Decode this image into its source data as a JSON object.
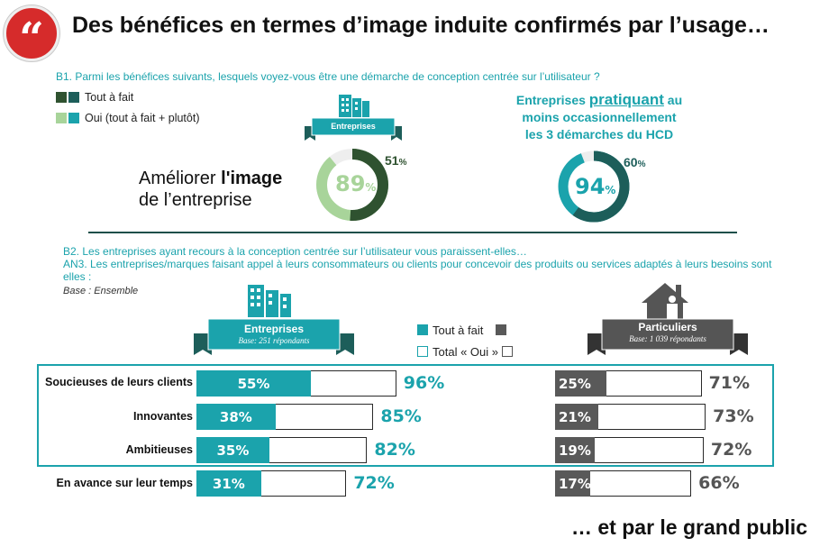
{
  "header": {
    "quote_mark": "“",
    "title": "Des bénéfices en termes d’image induite confirmés par l’usage…"
  },
  "b1": {
    "question": "B1. Parmi les bénéfices suivants, lesquels voyez-vous être une démarche de conception centrée sur l’utilisateur ?",
    "legend": [
      {
        "label": "Tout à fait",
        "colors": [
          "#2f5230",
          "#1d5e5a"
        ]
      },
      {
        "label": "Oui (tout à fait + plutôt)",
        "colors": [
          "#a8d49a",
          "#1ba3ac"
        ]
      }
    ],
    "item_label_line1": "Améliorer ",
    "item_label_bold": "l'image",
    "item_label_line2": "de l’entreprise",
    "entreprises_ribbon": "Entreprises",
    "hcd_pre": "Entreprises ",
    "hcd_emph": "pratiquant",
    "hcd_post": " au",
    "hcd_line2": "moins occasionnellement",
    "hcd_line3": "les 3 démarches du HCD"
  },
  "chart_data": [
    {
      "type": "pie",
      "title": "Entreprises",
      "series": [
        {
          "name": "Oui (tout à fait + plutôt)",
          "value": 89,
          "color": "#a8d49a"
        },
        {
          "name": "Tout à fait",
          "value": 51,
          "color": "#2f5230"
        }
      ],
      "labels": {
        "oui": "89",
        "tout": "51",
        "unit": "%"
      }
    },
    {
      "type": "pie",
      "title": "Entreprises pratiquant au moins occasionnellement les 3 démarches du HCD",
      "series": [
        {
          "name": "Oui (tout à fait + plutôt)",
          "value": 94,
          "color": "#1ba3ac"
        },
        {
          "name": "Tout à fait",
          "value": 60,
          "color": "#1d5e5a"
        }
      ],
      "labels": {
        "oui": "94",
        "tout": "60",
        "unit": "%"
      }
    },
    {
      "type": "bar",
      "title": "Entreprises",
      "subtitle": "Base : 251 répondants",
      "categories": [
        "Soucieuses de leurs clients",
        "Innovantes",
        "Ambitieuses",
        "En avance sur leur temps"
      ],
      "series": [
        {
          "name": "Tout à fait",
          "values": [
            55,
            38,
            35,
            31
          ],
          "color": "#1ba3ac"
        },
        {
          "name": "Total « Oui »",
          "values": [
            96,
            85,
            82,
            72
          ],
          "color": "#ffffff"
        }
      ]
    },
    {
      "type": "bar",
      "title": "Particuliers",
      "subtitle": "Base : 1 039 répondants",
      "categories": [
        "Soucieuses de leurs clients",
        "Innovantes",
        "Ambitieuses",
        "En avance sur leur temps"
      ],
      "series": [
        {
          "name": "Tout à fait",
          "values": [
            25,
            21,
            19,
            17
          ],
          "color": "#595959"
        },
        {
          "name": "Total « Oui »",
          "values": [
            71,
            73,
            72,
            66
          ],
          "color": "#ffffff"
        }
      ]
    }
  ],
  "b2": {
    "line1": "B2. Les entreprises ayant recours à la conception centrée sur l’utilisateur vous paraissent-elles…",
    "line2": "AN3. Les entreprises/marques faisant appel à leurs consommateurs ou clients pour concevoir des produits ou services adaptés à leurs besoins sont elles :",
    "base": "Base : Ensemble",
    "legend_tout": "Tout à fait",
    "legend_total": "Total « Oui »",
    "ent_title": "Entreprises",
    "ent_base": "Base: 251 répondants",
    "part_title": "Particuliers",
    "part_base": "Base: 1 039 répondants",
    "pct": "%"
  },
  "footer": {
    "text": "… et par le grand public"
  },
  "colors": {
    "teal": "#1ba3ac",
    "dark_teal": "#1d5e5a",
    "dark_green": "#2f5230",
    "light_green": "#a8d49a",
    "grey": "#595959",
    "red": "#d62b2b"
  }
}
